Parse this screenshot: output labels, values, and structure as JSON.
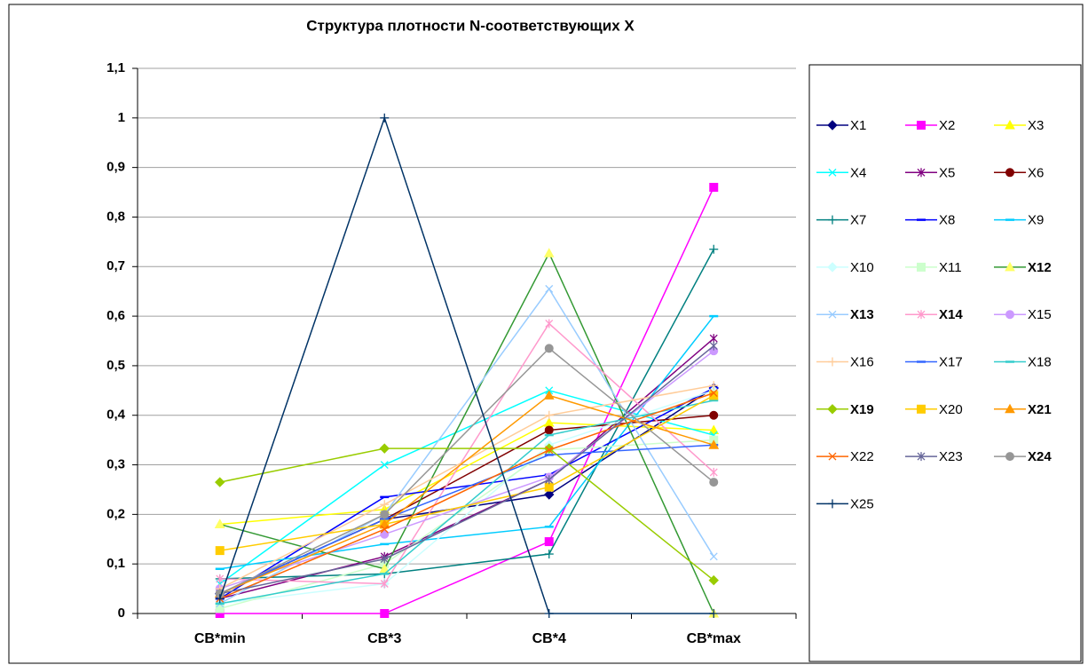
{
  "chart_data": {
    "type": "line",
    "title": "Структура плотности N-соответствующих X",
    "categories": [
      "CB*min",
      "CB*3",
      "CB*4",
      "CB*max"
    ],
    "ylim": [
      0,
      1.1
    ],
    "yticks": [
      0,
      {
        "value": 0.1,
        "label": "0,1"
      },
      {
        "value": 0.2,
        "label": "0,2"
      },
      {
        "value": 0.3,
        "label": "0,3"
      },
      {
        "value": 0.4,
        "label": "0,4"
      },
      {
        "value": 0.5,
        "label": "0,5"
      },
      {
        "value": 0.6,
        "label": "0,6"
      },
      {
        "value": 0.7,
        "label": "0,7"
      },
      {
        "value": 0.8,
        "label": "0,8"
      },
      {
        "value": 0.9,
        "label": "0,9"
      },
      1,
      {
        "value": 1.1,
        "label": "1,1"
      }
    ],
    "grid": true,
    "legend": "right",
    "series": [
      {
        "name": "X1",
        "color": "#000080",
        "marker": "diamond",
        "values": [
          0.04,
          0.19,
          0.24,
          0.455
        ]
      },
      {
        "name": "X2",
        "color": "#ff00ff",
        "marker": "square",
        "values": [
          0,
          0,
          0.145,
          0.86
        ]
      },
      {
        "name": "X3",
        "color": "#ffff00",
        "marker": "triangle",
        "values": [
          0.18,
          0.21,
          0.385,
          0.37
        ]
      },
      {
        "name": "X4",
        "color": "#00ffff",
        "marker": "x",
        "values": [
          0.06,
          0.3,
          0.45,
          0.36
        ]
      },
      {
        "name": "X5",
        "color": "#800080",
        "marker": "star",
        "values": [
          0.03,
          0.115,
          0.27,
          0.555
        ]
      },
      {
        "name": "X6",
        "color": "#800000",
        "marker": "circle",
        "values": [
          0.04,
          0.19,
          0.37,
          0.4
        ]
      },
      {
        "name": "X7",
        "color": "#008080",
        "marker": "plus",
        "values": [
          0.07,
          0.08,
          0.12,
          0.735
        ]
      },
      {
        "name": "X8",
        "color": "#0000ff",
        "marker": "dash",
        "values": [
          0.03,
          0.235,
          0.28,
          0.455
        ]
      },
      {
        "name": "X9",
        "color": "#00ccff",
        "marker": "dash",
        "values": [
          0.09,
          0.14,
          0.175,
          0.6
        ]
      },
      {
        "name": "X10",
        "color": "#ccffff",
        "marker": "diamond",
        "values": [
          0.02,
          0.06,
          0.34,
          0.45
        ]
      },
      {
        "name": "X11",
        "color": "#ccffcc",
        "marker": "square",
        "values": [
          0.01,
          0.1,
          0.33,
          0.35
        ]
      },
      {
        "name": "X12",
        "color": "#339933",
        "marker_color": "#ffff66",
        "marker": "triangle",
        "legend_bold": true,
        "values": [
          0.18,
          0.09,
          0.727,
          0
        ]
      },
      {
        "name": "X13",
        "color": "#99ccff",
        "marker": "x",
        "legend_bold": true,
        "values": [
          0.02,
          0.2,
          0.655,
          0.115
        ]
      },
      {
        "name": "X14",
        "color": "#ff99cc",
        "marker": "star",
        "legend_bold": true,
        "values": [
          0.07,
          0.06,
          0.585,
          0.285
        ]
      },
      {
        "name": "X15",
        "color": "#cc99ff",
        "marker": "circle",
        "values": [
          0.05,
          0.16,
          0.275,
          0.53
        ]
      },
      {
        "name": "X16",
        "color": "#ffcc99",
        "marker": "plus",
        "values": [
          0.05,
          0.22,
          0.4,
          0.46
        ]
      },
      {
        "name": "X17",
        "color": "#3366ff",
        "marker": "dash",
        "values": [
          0.04,
          0.19,
          0.32,
          0.34
        ]
      },
      {
        "name": "X18",
        "color": "#33cccc",
        "marker": "dash",
        "values": [
          0.02,
          0.08,
          0.36,
          0.43
        ]
      },
      {
        "name": "X19",
        "color": "#99cc00",
        "marker": "diamond",
        "legend_bold": true,
        "values": [
          0.265,
          0.333,
          0.333,
          0.067
        ]
      },
      {
        "name": "X20",
        "color": "#ffcc00",
        "marker": "square",
        "values": [
          0.127,
          0.18,
          0.255,
          0.44
        ]
      },
      {
        "name": "X21",
        "color": "#ff9900",
        "marker": "triangle",
        "legend_bold": true,
        "values": [
          0.04,
          0.18,
          0.44,
          0.34
        ]
      },
      {
        "name": "X22",
        "color": "#ff6600",
        "marker": "x",
        "values": [
          0.03,
          0.17,
          0.33,
          0.445
        ]
      },
      {
        "name": "X23",
        "color": "#666699",
        "marker": "star",
        "values": [
          0.04,
          0.11,
          0.27,
          0.54
        ]
      },
      {
        "name": "X24",
        "color": "#969696",
        "marker": "circle",
        "legend_bold": true,
        "values": [
          0.04,
          0.2,
          0.535,
          0.265
        ]
      },
      {
        "name": "X25",
        "color": "#003366",
        "marker": "plus",
        "values": [
          0.03,
          1,
          0,
          0
        ]
      }
    ]
  }
}
